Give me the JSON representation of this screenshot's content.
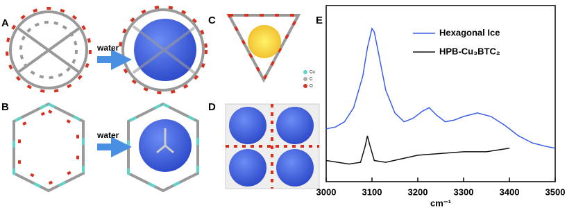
{
  "panels": {
    "labels": [
      "A",
      "B",
      "C",
      "D",
      "E"
    ],
    "arrow_text": [
      "water",
      "water"
    ],
    "atom_key": [
      "Cu",
      "C",
      "O"
    ]
  },
  "chart_data": {
    "type": "line",
    "xlabel": "cm⁻¹",
    "xlim": [
      3000,
      3500
    ],
    "xticks": [
      3000,
      3100,
      3200,
      3300,
      3400,
      3500
    ],
    "ylim": [
      0,
      100
    ],
    "series": [
      {
        "name": "Hexagonal Ice",
        "color": "#3a5ee8",
        "x": [
          3000,
          3020,
          3040,
          3060,
          3080,
          3090,
          3100,
          3105,
          3115,
          3130,
          3150,
          3170,
          3190,
          3210,
          3225,
          3240,
          3260,
          3280,
          3300,
          3330,
          3360,
          3390,
          3420,
          3450,
          3480,
          3500
        ],
        "values": [
          30,
          31,
          34,
          42,
          60,
          76,
          87,
          85,
          72,
          52,
          39,
          34,
          36,
          40,
          42,
          38,
          34,
          35,
          37,
          39,
          37,
          32,
          26,
          22,
          20,
          19
        ]
      },
      {
        "name": "HPB-Cu₃BTC₂",
        "color": "#111111",
        "x": [
          3000,
          3050,
          3075,
          3085,
          3090,
          3095,
          3105,
          3130,
          3200,
          3250,
          3300,
          3350,
          3400
        ],
        "values": [
          12,
          10,
          11,
          20,
          26,
          21,
          12,
          11,
          15,
          16,
          17,
          17,
          19
        ]
      }
    ]
  }
}
